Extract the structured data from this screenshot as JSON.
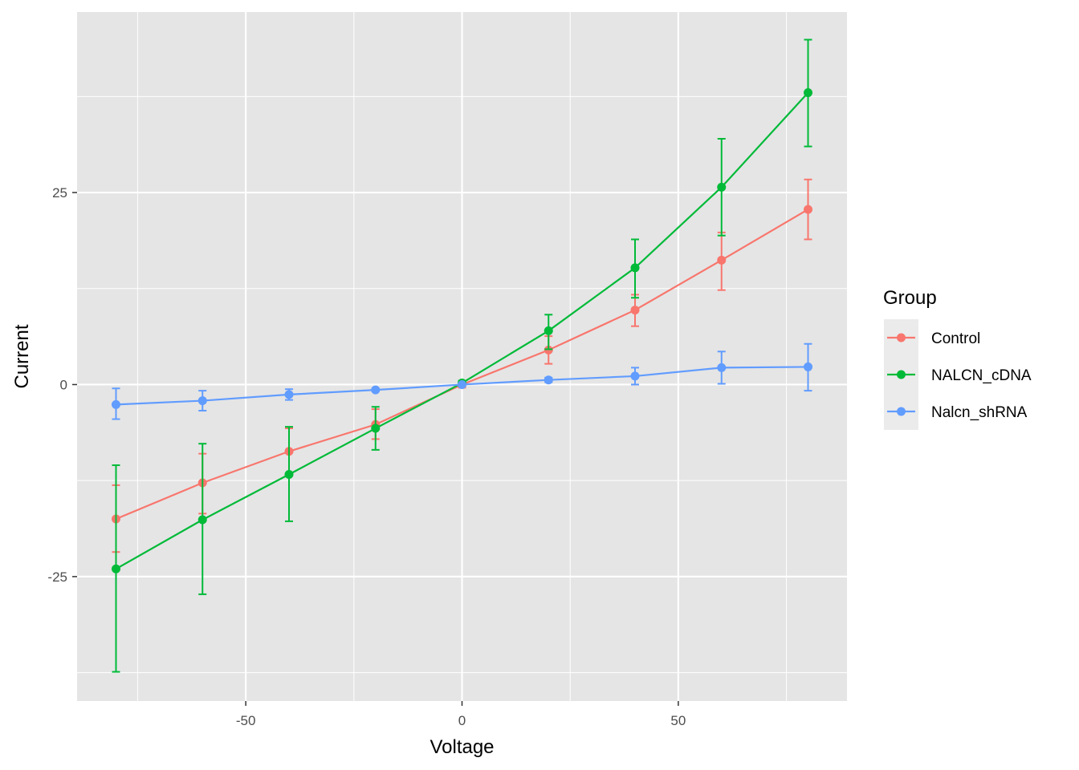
{
  "chart_data": {
    "type": "line",
    "xlabel": "Voltage",
    "ylabel": "Current",
    "x": [
      -80,
      -60,
      -40,
      -20,
      0,
      20,
      40,
      60,
      80
    ],
    "xlim": [
      -89,
      89
    ],
    "ylim": [
      -41.2,
      48.5
    ],
    "xticks": [
      -50,
      0,
      50
    ],
    "xtick_labels": [
      "-50",
      "0",
      "50"
    ],
    "yticks": [
      -25,
      0,
      25
    ],
    "ytick_labels": [
      "-25",
      "0",
      "25"
    ],
    "grid": true,
    "panel_background": "#e5e5e5",
    "legend": {
      "title": "Group",
      "position": "right"
    },
    "series": [
      {
        "name": "Control",
        "color": "#f8766d",
        "values": [
          -17.5,
          -12.8,
          -8.7,
          -5.2,
          0.0,
          4.5,
          9.7,
          16.2,
          22.8
        ],
        "error_lower": [
          -21.8,
          -16.8,
          -11.7,
          -7.1,
          -0.4,
          2.7,
          7.6,
          12.3,
          18.9
        ],
        "error_upper": [
          -13.1,
          -9.0,
          -5.7,
          -3.2,
          0.4,
          6.3,
          11.7,
          19.8,
          26.7
        ]
      },
      {
        "name": "NALCN_cDNA",
        "color": "#00ba38",
        "values": [
          -24.0,
          -17.6,
          -11.7,
          -5.7,
          0.2,
          7.0,
          15.2,
          25.7,
          38.0
        ],
        "error_lower": [
          -37.4,
          -27.3,
          -17.8,
          -8.5,
          -0.1,
          4.6,
          11.3,
          19.4,
          31.0
        ],
        "error_upper": [
          -10.5,
          -7.7,
          -5.5,
          -2.9,
          0.5,
          9.1,
          18.9,
          32.0,
          44.9
        ]
      },
      {
        "name": "Nalcn_shRNA",
        "color": "#619cff",
        "values": [
          -2.6,
          -2.1,
          -1.3,
          -0.7,
          0.0,
          0.6,
          1.1,
          2.2,
          2.3
        ],
        "error_lower": [
          -4.5,
          -3.4,
          -2.0,
          -0.9,
          -0.2,
          0.3,
          0.0,
          0.1,
          -0.8
        ],
        "error_upper": [
          -0.5,
          -0.8,
          -0.6,
          -0.5,
          0.2,
          0.9,
          2.2,
          4.3,
          5.3
        ]
      }
    ]
  }
}
